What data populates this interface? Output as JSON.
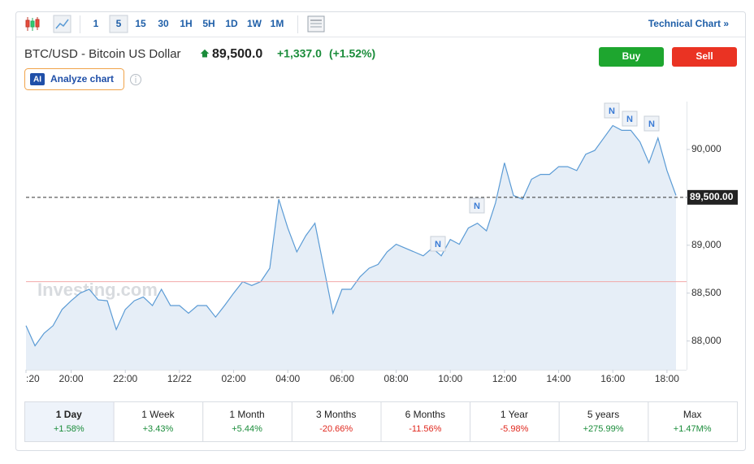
{
  "toolbar": {
    "intervals": [
      "1",
      "5",
      "15",
      "30",
      "1H",
      "5H",
      "1D",
      "1W",
      "1M"
    ],
    "selected": "5",
    "technical_chart": "Technical Chart »"
  },
  "header": {
    "symbol": "BTC/USD - Bitcoin US Dollar",
    "price": "89,500.0",
    "change": "+1,337.0",
    "change_pct": "(+1.52%)",
    "buy": "Buy",
    "sell": "Sell",
    "ai_badge": "AI",
    "analyze": "Analyze chart"
  },
  "watermark": "Investing.com",
  "chart_data": {
    "type": "line",
    "color": "#5b9bd5",
    "fill": "#e6eef7",
    "categories": [
      ":20",
      null,
      null,
      null,
      null,
      "20:00",
      null,
      null,
      null,
      null,
      null,
      "22:00",
      null,
      null,
      null,
      null,
      null,
      "12/22",
      null,
      null,
      null,
      null,
      null,
      "02:00",
      null,
      null,
      null,
      null,
      null,
      "04:00",
      null,
      null,
      null,
      null,
      null,
      "06:00",
      null,
      null,
      null,
      null,
      null,
      "08:00",
      null,
      null,
      null,
      null,
      null,
      "10:00",
      null,
      null,
      null,
      null,
      null,
      "12:00",
      null,
      null,
      null,
      null,
      null,
      "14:00",
      null,
      null,
      null,
      null,
      null,
      "16:00",
      null,
      null,
      null,
      null,
      null,
      "18:00",
      null
    ],
    "values": [
      88160,
      87950,
      88080,
      88160,
      88330,
      88420,
      88500,
      88540,
      88430,
      88420,
      88120,
      88330,
      88420,
      88460,
      88370,
      88540,
      88370,
      88370,
      88290,
      88370,
      88370,
      88250,
      88370,
      88500,
      88620,
      88580,
      88620,
      88760,
      89480,
      89180,
      88930,
      89100,
      89230,
      88760,
      88290,
      88540,
      88540,
      88670,
      88760,
      88800,
      88930,
      89010,
      88970,
      88930,
      88890,
      88970,
      88890,
      89060,
      89010,
      89180,
      89230,
      89150,
      89440,
      89860,
      89520,
      89480,
      89690,
      89740,
      89740,
      89820,
      89820,
      89780,
      89950,
      89990,
      90120,
      90250,
      90200,
      90200,
      90080,
      89860,
      90120,
      89780,
      89520
    ],
    "ylim": [
      87700,
      90500
    ],
    "yticks": [
      {
        "value": 88000,
        "label": "88,000"
      },
      {
        "value": 88500,
        "label": "88,500"
      },
      {
        "value": 89000,
        "label": "89,000"
      },
      {
        "value": 90000,
        "label": "90,000"
      }
    ],
    "price_line": {
      "value": 89500,
      "label": "89,500.00"
    },
    "reference_line": 88620
  },
  "periods": [
    {
      "label": "1 Day",
      "change": "+1.58%"
    },
    {
      "label": "1 Week",
      "change": "+3.43%"
    },
    {
      "label": "1 Month",
      "change": "+5.44%"
    },
    {
      "label": "3 Months",
      "change": "-20.66%"
    },
    {
      "label": "6 Months",
      "change": "-11.56%"
    },
    {
      "label": "1 Year",
      "change": "-5.98%"
    },
    {
      "label": "5 years",
      "change": "+275.99%"
    },
    {
      "label": "Max",
      "change": "+1.47M%"
    }
  ],
  "selected_period": "1 Day"
}
